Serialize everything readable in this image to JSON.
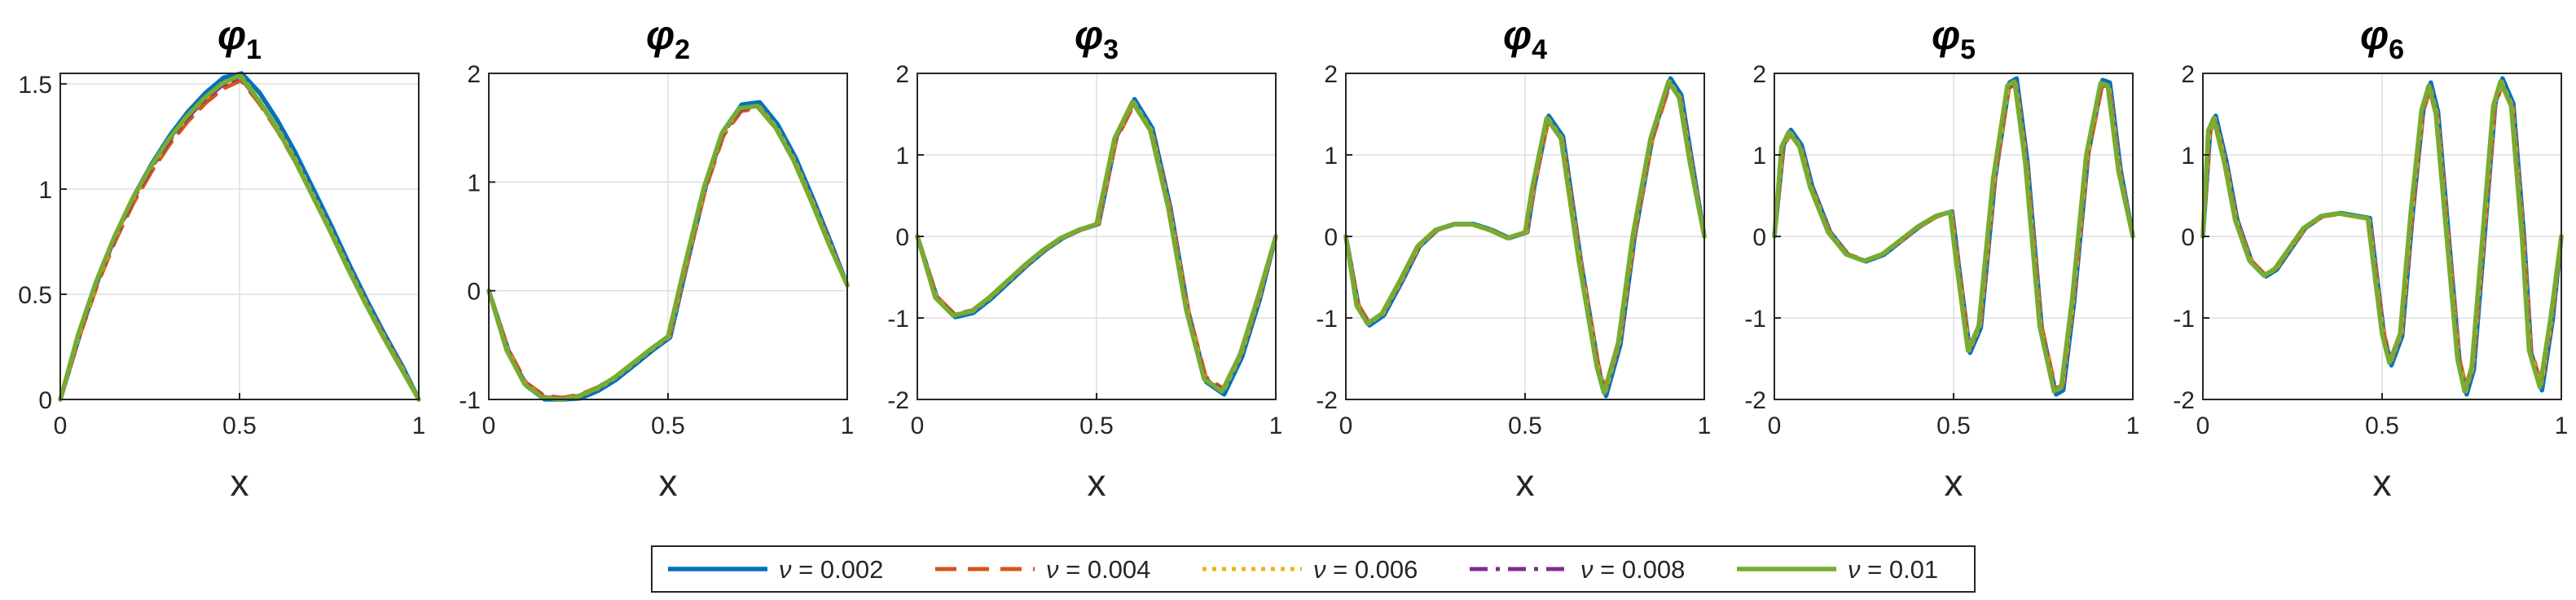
{
  "legend": {
    "placement": "bottom",
    "entries": [
      {
        "symbol": "ν",
        "text": " = 0.002",
        "color": "#0072BD",
        "style": "solid"
      },
      {
        "symbol": "ν",
        "text": " = 0.004",
        "color": "#D95319",
        "style": "dashed"
      },
      {
        "symbol": "ν",
        "text": " = 0.006",
        "color": "#EDB120",
        "style": "dotted"
      },
      {
        "symbol": "ν",
        "text": " = 0.008",
        "color": "#7E2F8E",
        "style": "dashdot"
      },
      {
        "symbol": "ν",
        "text": " = 0.01",
        "color": "#77AC30",
        "style": "solid"
      }
    ]
  },
  "chart_data": [
    {
      "type": "line",
      "title": "φ",
      "title_sub": "1",
      "xlabel": "x",
      "ylabel": "",
      "xlim": [
        0,
        1
      ],
      "ylim": [
        0,
        1.55
      ],
      "grid": true,
      "xticks": [
        0,
        0.5,
        1
      ],
      "xtick_labels": [
        "0",
        "0.5",
        "1"
      ],
      "yticks": [
        0,
        0.5,
        1,
        1.5
      ],
      "ytick_labels": [
        "0",
        "0.5",
        "1",
        "1.5"
      ],
      "x": [
        0,
        0.05,
        0.1,
        0.15,
        0.2,
        0.25,
        0.3,
        0.35,
        0.4,
        0.45,
        0.5,
        0.55,
        0.6,
        0.65,
        0.7,
        0.75,
        0.8,
        0.85,
        0.9,
        0.95,
        1
      ],
      "series": [
        {
          "name": "ν = 0.01",
          "values": [
            0,
            0.31,
            0.56,
            0.77,
            0.95,
            1.1,
            1.23,
            1.34,
            1.43,
            1.5,
            1.54,
            1.43,
            1.3,
            1.15,
            0.98,
            0.81,
            0.63,
            0.46,
            0.3,
            0.15,
            0
          ]
        }
      ]
    },
    {
      "type": "line",
      "title": "φ",
      "title_sub": "2",
      "xlabel": "x",
      "ylabel": "",
      "xlim": [
        0,
        1
      ],
      "ylim": [
        -1,
        2
      ],
      "grid": true,
      "xticks": [
        0,
        0.5,
        1
      ],
      "xtick_labels": [
        "0",
        "0.5",
        "1"
      ],
      "yticks": [
        -1,
        0,
        1,
        2
      ],
      "ytick_labels": [
        "-1",
        "0",
        "1",
        "2"
      ],
      "x": [
        0,
        0.05,
        0.1,
        0.15,
        0.2,
        0.25,
        0.3,
        0.35,
        0.4,
        0.45,
        0.5,
        0.55,
        0.6,
        0.65,
        0.7,
        0.75,
        0.8,
        0.85,
        0.9,
        0.95,
        1
      ],
      "series": [
        {
          "name": "ν = 0.01",
          "values": [
            0,
            -0.55,
            -0.86,
            -0.98,
            -1,
            -0.97,
            -0.9,
            -0.8,
            -0.67,
            -0.54,
            -0.42,
            0.28,
            0.95,
            1.45,
            1.68,
            1.7,
            1.5,
            1.2,
            0.82,
            0.42,
            0.05
          ]
        }
      ]
    },
    {
      "type": "line",
      "title": "φ",
      "title_sub": "3",
      "xlabel": "x",
      "ylabel": "",
      "xlim": [
        0,
        1
      ],
      "ylim": [
        -2,
        2
      ],
      "grid": true,
      "xticks": [
        0,
        0.5,
        1
      ],
      "xtick_labels": [
        "0",
        "0.5",
        "1"
      ],
      "yticks": [
        -2,
        -1,
        0,
        1,
        2
      ],
      "ytick_labels": [
        "-2",
        "-1",
        "0",
        "1",
        "2"
      ],
      "x": [
        0,
        0.05,
        0.1,
        0.15,
        0.2,
        0.25,
        0.3,
        0.35,
        0.4,
        0.45,
        0.5,
        0.55,
        0.6,
        0.65,
        0.7,
        0.75,
        0.8,
        0.85,
        0.9,
        0.95,
        1
      ],
      "series": [
        {
          "name": "ν = 0.01",
          "values": [
            0,
            -0.75,
            -0.97,
            -0.92,
            -0.75,
            -0.55,
            -0.35,
            -0.17,
            -0.02,
            0.08,
            0.15,
            1.2,
            1.65,
            1.3,
            0.35,
            -0.9,
            -1.75,
            -1.9,
            -1.45,
            -0.75,
            0
          ]
        }
      ]
    },
    {
      "type": "line",
      "title": "φ",
      "title_sub": "4",
      "xlabel": "x",
      "ylabel": "",
      "xlim": [
        0,
        1
      ],
      "ylim": [
        -2,
        2
      ],
      "grid": true,
      "xticks": [
        0,
        0.5,
        1
      ],
      "xtick_labels": [
        "0",
        "0.5",
        "1"
      ],
      "yticks": [
        -2,
        -1,
        0,
        1,
        2
      ],
      "ytick_labels": [
        "-2",
        "-1",
        "0",
        "1",
        "2"
      ],
      "x": [
        0,
        0.03,
        0.06,
        0.1,
        0.15,
        0.2,
        0.25,
        0.3,
        0.35,
        0.4,
        0.45,
        0.5,
        0.52,
        0.56,
        0.6,
        0.65,
        0.7,
        0.72,
        0.76,
        0.8,
        0.85,
        0.9,
        0.93,
        0.96,
        1
      ],
      "series": [
        {
          "name": "ν = 0.01",
          "values": [
            0,
            -0.85,
            -1.07,
            -0.95,
            -0.55,
            -0.12,
            0.08,
            0.15,
            0.15,
            0.08,
            -0.02,
            0.05,
            0.6,
            1.45,
            1.2,
            -0.3,
            -1.6,
            -1.92,
            -1.3,
            0.0,
            1.2,
            1.9,
            1.7,
            0.9,
            0
          ]
        }
      ]
    },
    {
      "type": "line",
      "title": "φ",
      "title_sub": "5",
      "xlabel": "x",
      "ylabel": "",
      "xlim": [
        0,
        1
      ],
      "ylim": [
        -2,
        2
      ],
      "grid": true,
      "xticks": [
        0,
        0.5,
        1
      ],
      "xtick_labels": [
        "0",
        "0.5",
        "1"
      ],
      "yticks": [
        -2,
        -1,
        0,
        1,
        2
      ],
      "ytick_labels": [
        "-2",
        "-1",
        "0",
        "1",
        "2"
      ],
      "x": [
        0,
        0.02,
        0.04,
        0.07,
        0.1,
        0.15,
        0.2,
        0.25,
        0.3,
        0.35,
        0.4,
        0.45,
        0.49,
        0.51,
        0.54,
        0.57,
        0.61,
        0.65,
        0.67,
        0.7,
        0.74,
        0.78,
        0.8,
        0.83,
        0.87,
        0.91,
        0.93,
        0.96,
        1
      ],
      "series": [
        {
          "name": "ν = 0.01",
          "values": [
            0,
            1.1,
            1.28,
            1.1,
            0.6,
            0.05,
            -0.22,
            -0.3,
            -0.22,
            -0.05,
            0.12,
            0.25,
            0.3,
            -0.4,
            -1.4,
            -1.1,
            0.7,
            1.85,
            1.9,
            0.9,
            -1.1,
            -1.9,
            -1.85,
            -0.8,
            1.0,
            1.88,
            1.85,
            0.8,
            0
          ]
        }
      ]
    },
    {
      "type": "line",
      "title": "φ",
      "title_sub": "6",
      "xlabel": "x",
      "ylabel": "",
      "xlim": [
        0,
        1
      ],
      "ylim": [
        -2,
        2
      ],
      "grid": true,
      "xticks": [
        0,
        0.5,
        1
      ],
      "xtick_labels": [
        "0",
        "0.5",
        "1"
      ],
      "yticks": [
        -2,
        -1,
        0,
        1,
        2
      ],
      "ytick_labels": [
        "-2",
        "-1",
        "0",
        "1",
        "2"
      ],
      "x": [
        0,
        0.015,
        0.03,
        0.06,
        0.09,
        0.13,
        0.17,
        0.2,
        0.24,
        0.28,
        0.33,
        0.38,
        0.42,
        0.46,
        0.48,
        0.5,
        0.52,
        0.55,
        0.58,
        0.61,
        0.63,
        0.65,
        0.68,
        0.71,
        0.73,
        0.75,
        0.78,
        0.81,
        0.83,
        0.86,
        0.89,
        0.91,
        0.94,
        0.97,
        1
      ],
      "series": [
        {
          "name": "ν = 0.01",
          "values": [
            0,
            1.3,
            1.45,
            0.9,
            0.2,
            -0.3,
            -0.48,
            -0.4,
            -0.15,
            0.1,
            0.25,
            0.28,
            0.25,
            0.22,
            -0.5,
            -1.2,
            -1.55,
            -1.2,
            0.3,
            1.55,
            1.85,
            1.5,
            0.0,
            -1.5,
            -1.9,
            -1.6,
            0.0,
            1.6,
            1.9,
            1.6,
            0.0,
            -1.4,
            -1.85,
            -1.0,
            0
          ]
        }
      ]
    }
  ]
}
